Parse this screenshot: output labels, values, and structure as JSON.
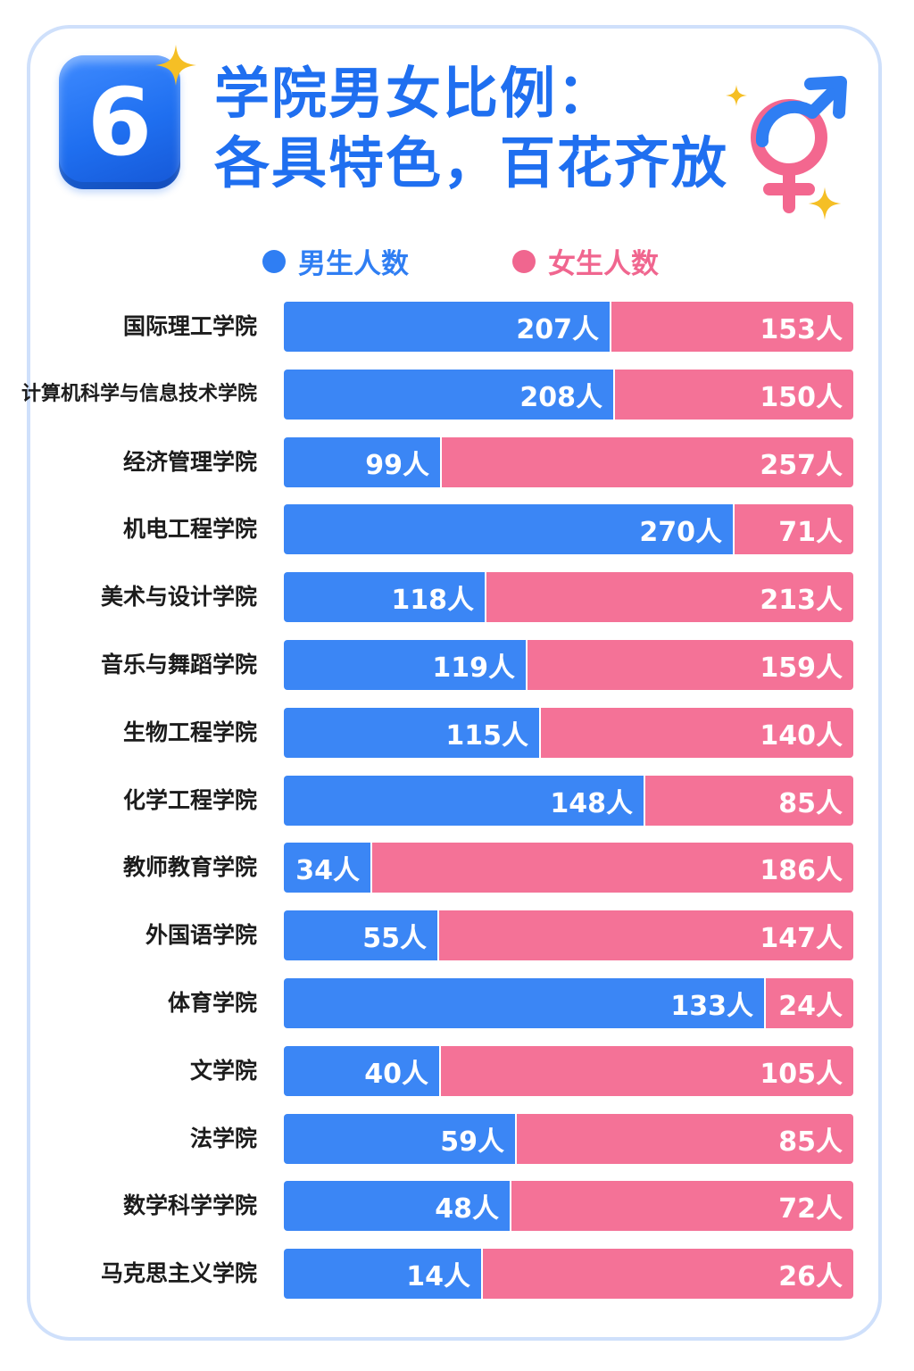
{
  "badge": {
    "number": "6"
  },
  "title": {
    "line1": "学院男女比例：",
    "line2": "各具特色，百花齐放"
  },
  "colors": {
    "accent": "#1f6ff0",
    "male": "#3b86f5",
    "female": "#f47297",
    "sparkle": "#f5bf25"
  },
  "icons": {
    "gender": "gender-symbol-icon",
    "sparkle": "sparkle-icon"
  },
  "legend": {
    "male": "男生人数",
    "female": "女生人数"
  },
  "unit": "人",
  "chart_data": {
    "type": "bar",
    "orientation": "horizontal",
    "stacked": true,
    "normalized": true,
    "title": "学院男女比例：各具特色，百花齐放",
    "legend_position": "top",
    "grid": false,
    "categories": [
      "国际理工学院",
      "计算机科学与信息技术学院",
      "经济管理学院",
      "机电工程学院",
      "美术与设计学院",
      "音乐与舞蹈学院",
      "生物工程学院",
      "化学工程学院",
      "教师教育学院",
      "外国语学院",
      "体育学院",
      "文学院",
      "法学院",
      "数学科学学院",
      "马克思主义学院"
    ],
    "series": [
      {
        "name": "男生人数",
        "values": [
          207,
          208,
          99,
          270,
          118,
          119,
          115,
          148,
          34,
          55,
          133,
          40,
          59,
          48,
          14
        ]
      },
      {
        "name": "女生人数",
        "values": [
          153,
          150,
          257,
          71,
          213,
          159,
          140,
          85,
          186,
          147,
          24,
          105,
          85,
          72,
          26
        ]
      }
    ]
  }
}
